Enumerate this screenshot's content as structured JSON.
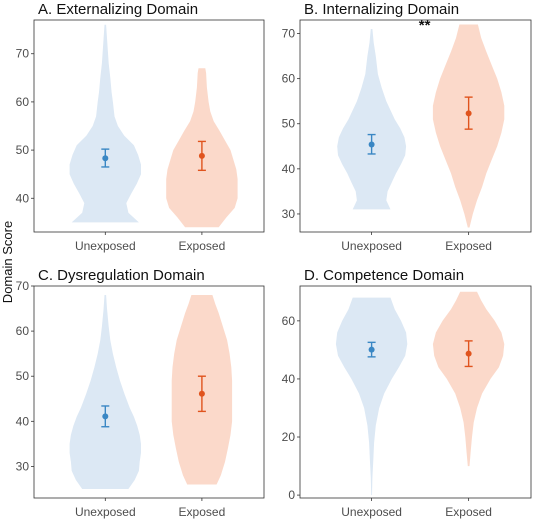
{
  "figure": {
    "ylabel": "Domain Score",
    "colors": {
      "unexposed_fill": "#dce8f4",
      "exposed_fill": "#fbd9ca",
      "unexposed_point": "#3a87c4",
      "exposed_point": "#e0541e"
    }
  },
  "chart_data": [
    {
      "type": "violin",
      "title": "A. Externalizing Domain",
      "categories": [
        "Unexposed",
        "Exposed"
      ],
      "ylim": [
        33,
        77
      ],
      "yticks": [
        40,
        50,
        60,
        70
      ],
      "significance": "",
      "series": [
        {
          "category": "Unexposed",
          "mean": 48.3,
          "ci_low": 46.5,
          "ci_high": 50.2,
          "min": 35,
          "max": 76,
          "density": [
            [
              35,
              0.8
            ],
            [
              37,
              0.55
            ],
            [
              39,
              0.5
            ],
            [
              41,
              0.62
            ],
            [
              43,
              0.75
            ],
            [
              45,
              0.85
            ],
            [
              47,
              0.85
            ],
            [
              49,
              0.78
            ],
            [
              51,
              0.68
            ],
            [
              53,
              0.45
            ],
            [
              55,
              0.3
            ],
            [
              57,
              0.22
            ],
            [
              60,
              0.18
            ],
            [
              62,
              0.15
            ],
            [
              65,
              0.12
            ],
            [
              68,
              0.08
            ],
            [
              72,
              0.05
            ],
            [
              76,
              0.02
            ]
          ]
        },
        {
          "category": "Exposed",
          "mean": 48.8,
          "ci_low": 45.8,
          "ci_high": 51.8,
          "min": 34,
          "max": 67,
          "density": [
            [
              34,
              0.4
            ],
            [
              36,
              0.58
            ],
            [
              38,
              0.78
            ],
            [
              40,
              0.85
            ],
            [
              42,
              0.85
            ],
            [
              44,
              0.85
            ],
            [
              46,
              0.82
            ],
            [
              48,
              0.75
            ],
            [
              50,
              0.68
            ],
            [
              52,
              0.55
            ],
            [
              54,
              0.42
            ],
            [
              56,
              0.28
            ],
            [
              58,
              0.2
            ],
            [
              60,
              0.16
            ],
            [
              63,
              0.12
            ],
            [
              66,
              0.1
            ],
            [
              67,
              0.08
            ]
          ]
        }
      ]
    },
    {
      "type": "violin",
      "title": "B. Internalizing Domain",
      "categories": [
        "Unexposed",
        "Exposed"
      ],
      "ylim": [
        26,
        73
      ],
      "yticks": [
        30,
        40,
        50,
        60,
        70
      ],
      "significance": "**",
      "series": [
        {
          "category": "Unexposed",
          "mean": 45.4,
          "ci_low": 43.3,
          "ci_high": 47.6,
          "min": 31,
          "max": 71,
          "density": [
            [
              31,
              0.45
            ],
            [
              33,
              0.35
            ],
            [
              35,
              0.38
            ],
            [
              37,
              0.48
            ],
            [
              39,
              0.58
            ],
            [
              41,
              0.7
            ],
            [
              43,
              0.8
            ],
            [
              45,
              0.82
            ],
            [
              47,
              0.78
            ],
            [
              49,
              0.68
            ],
            [
              51,
              0.55
            ],
            [
              53,
              0.45
            ],
            [
              55,
              0.35
            ],
            [
              58,
              0.24
            ],
            [
              61,
              0.15
            ],
            [
              65,
              0.1
            ],
            [
              68,
              0.05
            ],
            [
              71,
              0.02
            ]
          ]
        },
        {
          "category": "Exposed",
          "mean": 52.3,
          "ci_low": 48.8,
          "ci_high": 55.9,
          "min": 27,
          "max": 72,
          "density": [
            [
              27,
              0.02
            ],
            [
              30,
              0.1
            ],
            [
              33,
              0.2
            ],
            [
              36,
              0.32
            ],
            [
              39,
              0.42
            ],
            [
              42,
              0.55
            ],
            [
              45,
              0.68
            ],
            [
              48,
              0.78
            ],
            [
              51,
              0.85
            ],
            [
              54,
              0.85
            ],
            [
              57,
              0.78
            ],
            [
              60,
              0.68
            ],
            [
              63,
              0.55
            ],
            [
              66,
              0.42
            ],
            [
              69,
              0.3
            ],
            [
              72,
              0.22
            ]
          ]
        }
      ]
    },
    {
      "type": "violin",
      "title": "C. Dysregulation Domain",
      "categories": [
        "Unexposed",
        "Exposed"
      ],
      "ylim": [
        23,
        70
      ],
      "yticks": [
        30,
        40,
        50,
        60,
        70
      ],
      "significance": "",
      "series": [
        {
          "category": "Unexposed",
          "mean": 41.1,
          "ci_low": 38.8,
          "ci_high": 43.4,
          "min": 25,
          "max": 68,
          "density": [
            [
              25,
              0.55
            ],
            [
              27,
              0.7
            ],
            [
              29,
              0.8
            ],
            [
              31,
              0.82
            ],
            [
              33,
              0.85
            ],
            [
              35,
              0.85
            ],
            [
              37,
              0.82
            ],
            [
              39,
              0.76
            ],
            [
              41,
              0.68
            ],
            [
              43,
              0.58
            ],
            [
              46,
              0.46
            ],
            [
              49,
              0.35
            ],
            [
              52,
              0.26
            ],
            [
              55,
              0.18
            ],
            [
              58,
              0.12
            ],
            [
              61,
              0.08
            ],
            [
              65,
              0.04
            ],
            [
              68,
              0.02
            ]
          ]
        },
        {
          "category": "Exposed",
          "mean": 46.1,
          "ci_low": 42.2,
          "ci_high": 50.0,
          "min": 26,
          "max": 68,
          "density": [
            [
              26,
              0.35
            ],
            [
              28,
              0.45
            ],
            [
              31,
              0.55
            ],
            [
              34,
              0.62
            ],
            [
              37,
              0.68
            ],
            [
              40,
              0.72
            ],
            [
              43,
              0.72
            ],
            [
              46,
              0.72
            ],
            [
              49,
              0.72
            ],
            [
              52,
              0.7
            ],
            [
              55,
              0.66
            ],
            [
              58,
              0.6
            ],
            [
              61,
              0.5
            ],
            [
              64,
              0.4
            ],
            [
              66,
              0.32
            ],
            [
              68,
              0.25
            ]
          ]
        }
      ]
    },
    {
      "type": "violin",
      "title": "D. Competence Domain",
      "categories": [
        "Unexposed",
        "Exposed"
      ],
      "ylim": [
        -1,
        72
      ],
      "yticks": [
        0,
        20,
        40,
        60
      ],
      "significance": "",
      "series": [
        {
          "category": "Unexposed",
          "mean": 50.1,
          "ci_low": 47.6,
          "ci_high": 52.6,
          "min": 0,
          "max": 68,
          "density": [
            [
              0,
              0.01
            ],
            [
              6,
              0.02
            ],
            [
              12,
              0.04
            ],
            [
              18,
              0.06
            ],
            [
              24,
              0.1
            ],
            [
              30,
              0.18
            ],
            [
              35,
              0.3
            ],
            [
              40,
              0.48
            ],
            [
              44,
              0.65
            ],
            [
              48,
              0.8
            ],
            [
              52,
              0.85
            ],
            [
              56,
              0.82
            ],
            [
              60,
              0.7
            ],
            [
              64,
              0.55
            ],
            [
              68,
              0.45
            ]
          ]
        },
        {
          "category": "Exposed",
          "mean": 48.7,
          "ci_low": 44.3,
          "ci_high": 53.1,
          "min": 10,
          "max": 70,
          "density": [
            [
              10,
              0.02
            ],
            [
              15,
              0.05
            ],
            [
              20,
              0.08
            ],
            [
              25,
              0.12
            ],
            [
              30,
              0.2
            ],
            [
              35,
              0.32
            ],
            [
              40,
              0.52
            ],
            [
              44,
              0.72
            ],
            [
              48,
              0.82
            ],
            [
              52,
              0.85
            ],
            [
              56,
              0.78
            ],
            [
              60,
              0.62
            ],
            [
              64,
              0.42
            ],
            [
              67,
              0.3
            ],
            [
              70,
              0.2
            ]
          ]
        }
      ]
    }
  ]
}
